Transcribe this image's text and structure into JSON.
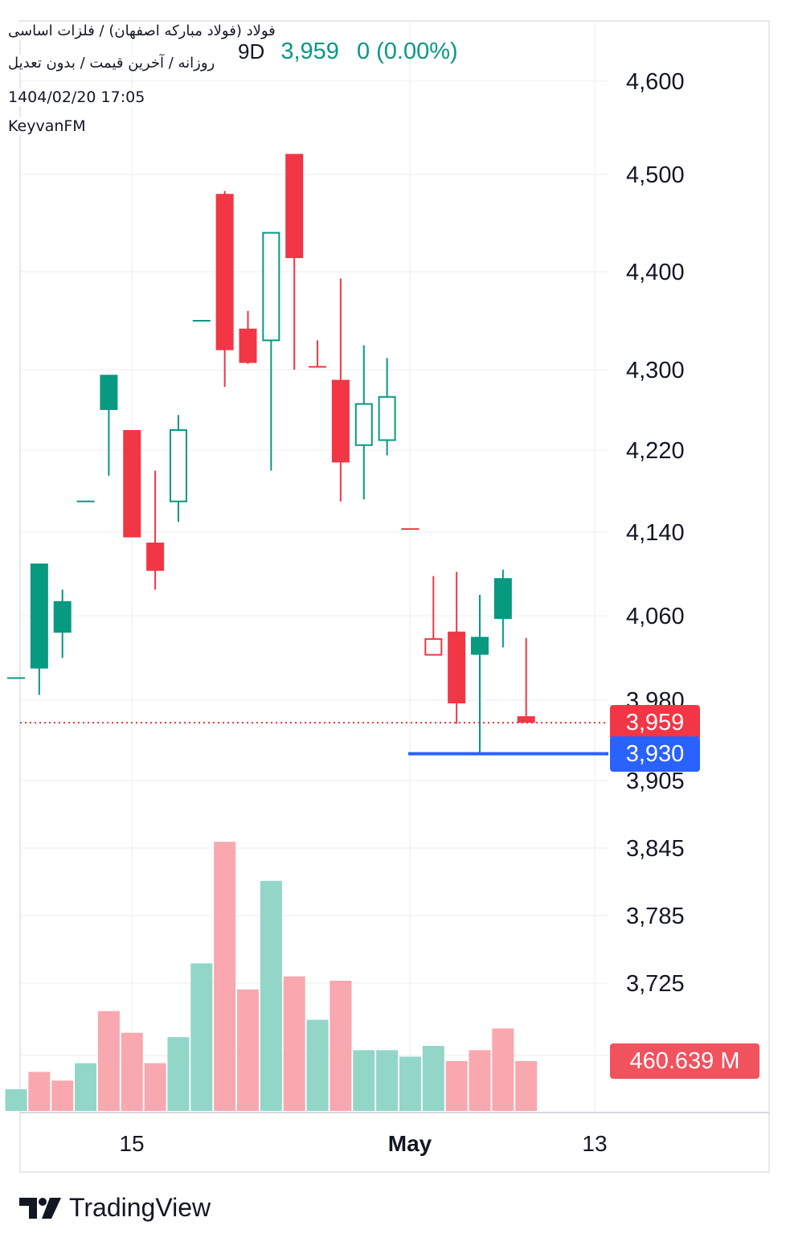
{
  "header": {
    "title": "فولاد (فولاد مبارکه اصفهان) / فلزات اساسی",
    "subtitle": "روزانه / آخرین قیمت / بدون تعدیل",
    "datetime": "1404/02/20 17:05",
    "author": "KeyvanFM",
    "interval": "9D",
    "last_price": "3,959",
    "change": "0 (0.00%)"
  },
  "tags": {
    "last_price": "3,959",
    "alert_line": "3,930",
    "volume": "460.639 M"
  },
  "footer": {
    "brand": "TradingView"
  },
  "colors": {
    "up": "#089981",
    "down": "#f23645",
    "up_volume": "#92d6c8",
    "down_volume": "#f9a8b0",
    "alert": "#2962ff",
    "grid": "#eceef2"
  },
  "chart_data": {
    "type": "candlestick",
    "y_ticks": [
      "4,600",
      "4,500",
      "4,400",
      "4,300",
      "4,220",
      "4,140",
      "4,060",
      "3,980",
      "3,905",
      "3,845",
      "3,785",
      "3,725"
    ],
    "x_ticks": [
      "15",
      "May",
      "13"
    ],
    "last_price": 3959,
    "horizontal_line": 3930,
    "candles": [
      {
        "open": 4001,
        "high": 4001,
        "low": 4001,
        "close": 4001,
        "style": "flat-up"
      },
      {
        "open": 4010,
        "high": 4110,
        "low": 3985,
        "close": 4110,
        "style": "up-filled"
      },
      {
        "open": 4044,
        "high": 4085,
        "low": 4020,
        "close": 4074,
        "style": "up-filled"
      },
      {
        "open": 4170,
        "high": 4170,
        "low": 4170,
        "close": 4170,
        "style": "flat-up"
      },
      {
        "open": 4260,
        "high": 4295,
        "low": 4195,
        "close": 4295,
        "style": "up-filled"
      },
      {
        "open": 4240,
        "high": 4240,
        "low": 4135,
        "close": 4135,
        "style": "down-filled"
      },
      {
        "open": 4130,
        "high": 4200,
        "low": 4085,
        "close": 4103,
        "style": "down-filled"
      },
      {
        "open": 4170,
        "high": 4255,
        "low": 4150,
        "close": 4240,
        "style": "up-hollow"
      },
      {
        "open": 4350,
        "high": 4350,
        "low": 4350,
        "close": 4350,
        "style": "flat-up"
      },
      {
        "open": 4480,
        "high": 4483,
        "low": 4283,
        "close": 4320,
        "style": "down-filled"
      },
      {
        "open": 4342,
        "high": 4360,
        "low": 4306,
        "close": 4307,
        "style": "down-filled"
      },
      {
        "open": 4330,
        "high": 4440,
        "low": 4200,
        "close": 4440,
        "style": "up-hollow"
      },
      {
        "open": 4522,
        "high": 4522,
        "low": 4300,
        "close": 4414,
        "style": "down-filled"
      },
      {
        "open": 4303,
        "high": 4330,
        "low": 4303,
        "close": 4303,
        "style": "down-flat"
      },
      {
        "open": 4290,
        "high": 4393,
        "low": 4170,
        "close": 4208,
        "style": "down-filled"
      },
      {
        "open": 4225,
        "high": 4325,
        "low": 4172,
        "close": 4266,
        "style": "up-hollow"
      },
      {
        "open": 4230,
        "high": 4312,
        "low": 4215,
        "close": 4273,
        "style": "up-hollow"
      },
      {
        "open": 4143,
        "high": 4143,
        "low": 4143,
        "close": 4143,
        "style": "down-flat"
      },
      {
        "open": 4038,
        "high": 4098,
        "low": 4023,
        "close": 4023,
        "style": "down-hollow"
      },
      {
        "open": 4045,
        "high": 4102,
        "low": 3958,
        "close": 3977,
        "style": "down-filled"
      },
      {
        "open": 4023,
        "high": 4080,
        "low": 3930,
        "close": 4040,
        "style": "up-filled"
      },
      {
        "open": 4057,
        "high": 4104,
        "low": 4030,
        "close": 4096,
        "style": "up-filled"
      },
      {
        "open": 3965,
        "high": 4039,
        "low": 3959,
        "close": 3959,
        "style": "down-filled"
      }
    ],
    "volume_series": [
      {
        "value": 5,
        "dir": "up"
      },
      {
        "value": 9,
        "dir": "down"
      },
      {
        "value": 7,
        "dir": "down"
      },
      {
        "value": 11,
        "dir": "up"
      },
      {
        "value": 23,
        "dir": "down"
      },
      {
        "value": 18,
        "dir": "down"
      },
      {
        "value": 11,
        "dir": "down"
      },
      {
        "value": 17,
        "dir": "up"
      },
      {
        "value": 34,
        "dir": "up"
      },
      {
        "value": 62,
        "dir": "down"
      },
      {
        "value": 28,
        "dir": "down"
      },
      {
        "value": 53,
        "dir": "up"
      },
      {
        "value": 31,
        "dir": "down"
      },
      {
        "value": 21,
        "dir": "up"
      },
      {
        "value": 30,
        "dir": "down"
      },
      {
        "value": 14,
        "dir": "up"
      },
      {
        "value": 14,
        "dir": "up"
      },
      {
        "value": 12.5,
        "dir": "up"
      },
      {
        "value": 15,
        "dir": "up"
      },
      {
        "value": 11.5,
        "dir": "down"
      },
      {
        "value": 14,
        "dir": "down"
      },
      {
        "value": 19,
        "dir": "down"
      },
      {
        "value": 11.5,
        "dir": "down"
      }
    ]
  }
}
